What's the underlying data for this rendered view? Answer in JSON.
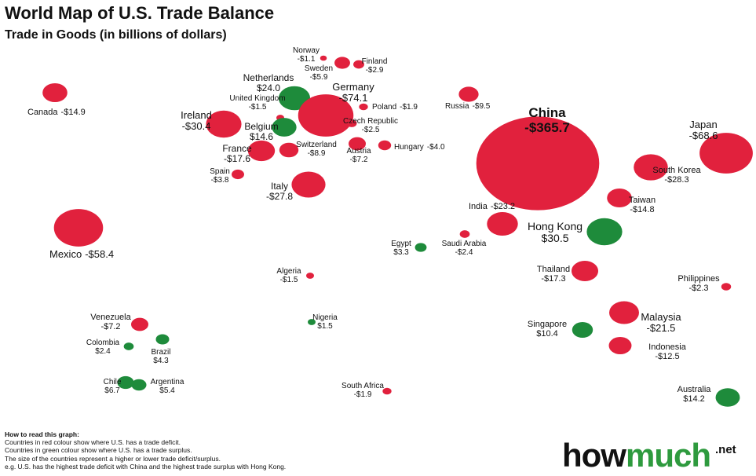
{
  "title": "World Map of U.S. Trade Balance",
  "subtitle": "Trade in Goods (in billions of dollars)",
  "colors": {
    "deficit": "#e1213d",
    "surplus": "#1e8b3b"
  },
  "countries": [
    {
      "name": "Canada",
      "value": -14.9,
      "label": "-$14.9"
    },
    {
      "name": "Mexico",
      "value": -58.4,
      "label": "-$58.4"
    },
    {
      "name": "Ireland",
      "value": -30.4,
      "label": "-$30.4"
    },
    {
      "name": "United Kingdom",
      "value": -1.5,
      "label": "-$1.5"
    },
    {
      "name": "Netherlands",
      "value": 24.0,
      "label": "$24.0"
    },
    {
      "name": "Belgium",
      "value": 14.6,
      "label": "$14.6"
    },
    {
      "name": "Germany",
      "value": -74.1,
      "label": "-$74.1"
    },
    {
      "name": "Norway",
      "value": -1.1,
      "label": "-$1.1"
    },
    {
      "name": "Sweden",
      "value": -5.9,
      "label": "-$5.9"
    },
    {
      "name": "Finland",
      "value": -2.9,
      "label": "-$2.9"
    },
    {
      "name": "Poland",
      "value": -1.9,
      "label": "-$1.9"
    },
    {
      "name": "Czech Republic",
      "value": -2.5,
      "label": "-$2.5"
    },
    {
      "name": "France",
      "value": -17.6,
      "label": "-$17.6"
    },
    {
      "name": "Switzerland",
      "value": -8.9,
      "label": "-$8.9"
    },
    {
      "name": "Austria",
      "value": -7.2,
      "label": "-$7.2"
    },
    {
      "name": "Hungary",
      "value": -4.0,
      "label": "-$4.0"
    },
    {
      "name": "Spain",
      "value": -3.8,
      "label": "-$3.8"
    },
    {
      "name": "Italy",
      "value": -27.8,
      "label": "-$27.8"
    },
    {
      "name": "Russia",
      "value": -9.5,
      "label": "-$9.5"
    },
    {
      "name": "China",
      "value": -365.7,
      "label": "-$365.7"
    },
    {
      "name": "Japan",
      "value": -68.6,
      "label": "-$68.6"
    },
    {
      "name": "South Korea",
      "value": -28.3,
      "label": "-$28.3"
    },
    {
      "name": "Taiwan",
      "value": -14.8,
      "label": "-$14.8"
    },
    {
      "name": "India",
      "value": -23.2,
      "label": "-$23.2"
    },
    {
      "name": "Hong Kong",
      "value": 30.5,
      "label": "$30.5"
    },
    {
      "name": "Egypt",
      "value": 3.3,
      "label": "$3.3"
    },
    {
      "name": "Saudi Arabia",
      "value": -2.4,
      "label": "-$2.4"
    },
    {
      "name": "Algeria",
      "value": -1.5,
      "label": "-$1.5"
    },
    {
      "name": "Thailand",
      "value": -17.3,
      "label": "-$17.3"
    },
    {
      "name": "Philippines",
      "value": -2.3,
      "label": "-$2.3"
    },
    {
      "name": "Malaysia",
      "value": -21.5,
      "label": "-$21.5"
    },
    {
      "name": "Singapore",
      "value": 10.4,
      "label": "$10.4"
    },
    {
      "name": "Indonesia",
      "value": -12.5,
      "label": "-$12.5"
    },
    {
      "name": "Nigeria",
      "value": 1.5,
      "label": "$1.5"
    },
    {
      "name": "Venezuela",
      "value": -7.2,
      "label": "-$7.2"
    },
    {
      "name": "Colombia",
      "value": 2.4,
      "label": "$2.4"
    },
    {
      "name": "Brazil",
      "value": 4.3,
      "label": "$4.3"
    },
    {
      "name": "Chile",
      "value": 6.7,
      "label": "$6.7"
    },
    {
      "name": "Argentina",
      "value": 5.4,
      "label": "$5.4"
    },
    {
      "name": "South Africa",
      "value": -1.9,
      "label": "-$1.9"
    },
    {
      "name": "Australia",
      "value": 14.2,
      "label": "$14.2"
    }
  ],
  "notes": {
    "heading": "How to read this graph:",
    "lines": [
      "Countries in red colour show where U.S. has a trade deficit.",
      "Countries in green colour show where U.S. has a trade surplus.",
      "The size of the countries represent a higher or lower trade deficit/surplus.",
      "e.g. U.S. has the highest trade deficit with China and the highest trade surplus with Hong Kong."
    ]
  },
  "logo": {
    "main": "how",
    "accent": "much",
    "suffix": ".net"
  }
}
